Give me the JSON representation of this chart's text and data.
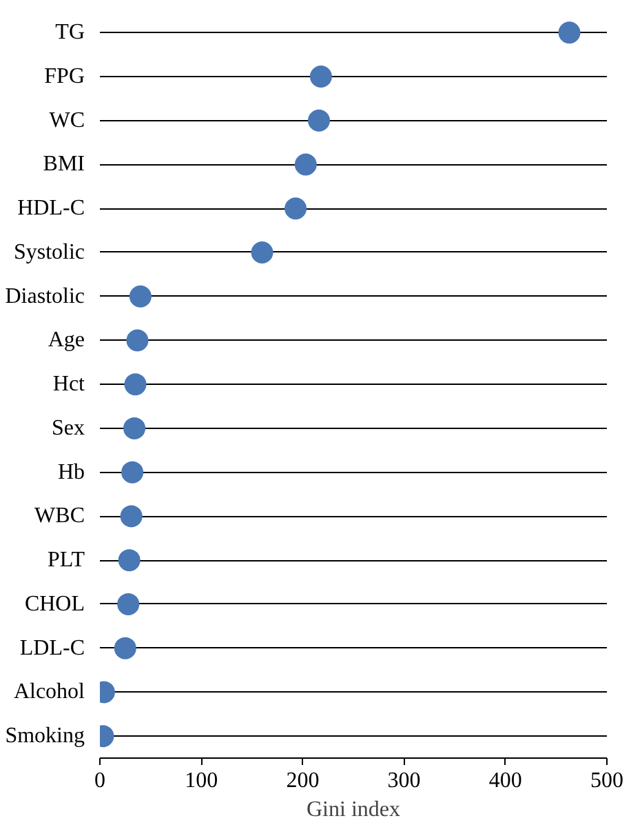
{
  "chart_data": {
    "type": "scatter",
    "orientation": "horizontal",
    "xlabel": "Gini index",
    "categories": [
      "TG",
      "FPG",
      "WC",
      "BMI",
      "HDL-C",
      "Systolic",
      "Diastolic",
      "Age",
      "Hct",
      "Sex",
      "Hb",
      "WBC",
      "PLT",
      "CHOL",
      "LDL-C",
      "Alcohol",
      "Smoking"
    ],
    "series": [
      {
        "color": "#4a78b5",
        "values": [
          463,
          218,
          216,
          203,
          193,
          160,
          40,
          37,
          35,
          34,
          32,
          31,
          29,
          28,
          25,
          4,
          3
        ]
      }
    ],
    "xlim": [
      0,
      500
    ],
    "xticks": [
      0,
      100,
      200,
      300,
      400,
      500
    ],
    "grid": "y",
    "marker": "circle"
  }
}
